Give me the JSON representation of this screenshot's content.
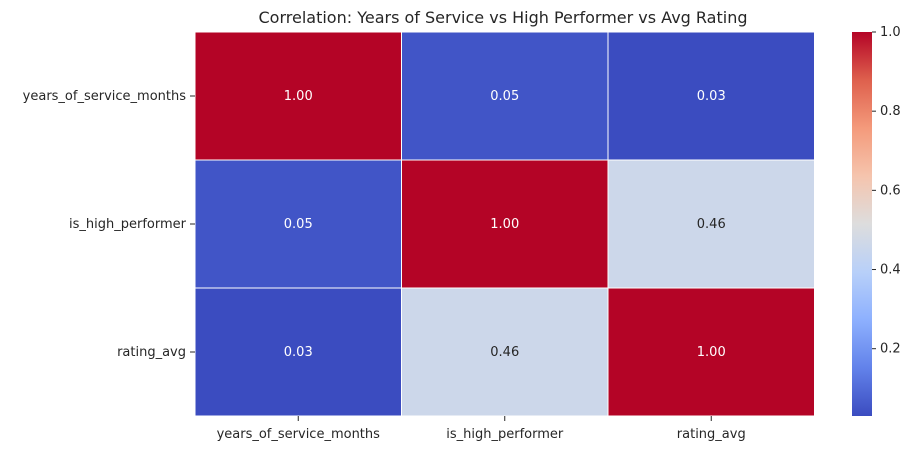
{
  "chart_data": {
    "type": "heatmap",
    "title": "Correlation: Years of Service vs High Performer vs Avg Rating",
    "xlabel": "",
    "ylabel": "",
    "x_categories": [
      "years_of_service_months",
      "is_high_performer",
      "rating_avg"
    ],
    "y_categories": [
      "years_of_service_months",
      "is_high_performer",
      "rating_avg"
    ],
    "values": [
      [
        1.0,
        0.05,
        0.03
      ],
      [
        0.05,
        1.0,
        0.46
      ],
      [
        0.03,
        0.46,
        1.0
      ]
    ],
    "value_format": "0.00",
    "colormap": "coolwarm",
    "color_range": [
      0.03,
      1.0
    ],
    "colorbar": {
      "ticks": [
        0.2,
        0.4,
        0.6,
        0.8,
        1.0
      ],
      "tick_labels": [
        "0.2",
        "0.4",
        "0.6",
        "0.8",
        "1.0"
      ]
    },
    "colors": {
      "low": "#3b4cc0",
      "mid": "#dddddd",
      "high": "#b40426",
      "cell_border": "#ffffff",
      "text": "#262626",
      "annotation_light": "#ffffff",
      "annotation_dark": "#262626"
    },
    "grid": false
  }
}
